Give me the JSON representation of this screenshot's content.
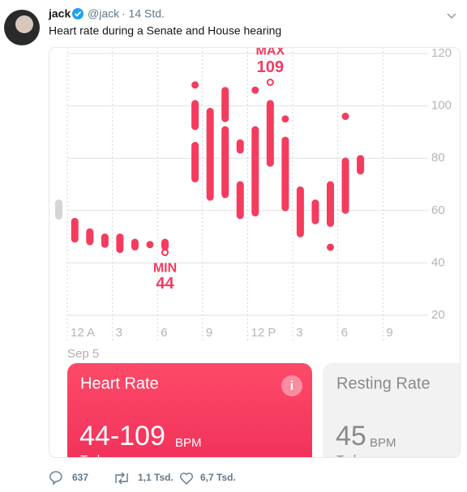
{
  "tweet": {
    "name": "jack",
    "handle": "@jack",
    "time": "· 14 Std.",
    "text": "Heart rate during a Senate and House hearing",
    "replies": "637",
    "retweets": "1,1 Tsd.",
    "likes": "6,7 Tsd."
  },
  "chart_data": {
    "type": "range",
    "color": "#f43c5f",
    "x": [
      0.5,
      1.5,
      2.5,
      3.5,
      4.5,
      5.5,
      6.5,
      6.5,
      8.5,
      8.5,
      8.5,
      9.5,
      10.5,
      10.5,
      11.5,
      11.5,
      12.5,
      12.5,
      13.5,
      14.5,
      14.5,
      15.5,
      16.5,
      17.5,
      17.5,
      18.5,
      18.5,
      19.5
    ],
    "low": [
      49,
      48,
      47,
      45,
      46,
      47,
      46,
      44,
      108,
      92,
      72,
      65,
      95,
      66,
      83,
      58,
      106,
      59,
      78,
      95,
      61,
      51,
      56,
      55,
      46,
      96,
      60,
      75
    ],
    "high": [
      56,
      52,
      50,
      50,
      48,
      47,
      48,
      44,
      108,
      101,
      85,
      98,
      106,
      91,
      86,
      70,
      106,
      91,
      101,
      95,
      87,
      68,
      63,
      70,
      46,
      96,
      79,
      80
    ],
    "xlim": [
      0,
      24
    ],
    "ylim": [
      20,
      120
    ],
    "yticks": [
      20,
      40,
      60,
      80,
      100,
      120
    ],
    "xticks": [
      {
        "value": 0,
        "label": "12 A"
      },
      3,
      6,
      9,
      {
        "value": 12,
        "label": "12 P"
      },
      {
        "value": 15,
        "label": "3"
      },
      {
        "value": 18,
        "label": "6"
      },
      {
        "value": 21,
        "label": "9"
      }
    ],
    "x_label": "Sep 5",
    "grid": true,
    "annotations": [
      {
        "label": "MIN",
        "value": 44,
        "x": 6.5
      },
      {
        "label": "MAX",
        "value": 109,
        "x": 13.5
      }
    ]
  },
  "cards": [
    {
      "title": "Heart Rate",
      "value": "44-109",
      "unit": "BPM",
      "period": "Today"
    },
    {
      "title": "Resting Rate",
      "value": "45",
      "unit": "BPM",
      "period": "Today"
    }
  ]
}
